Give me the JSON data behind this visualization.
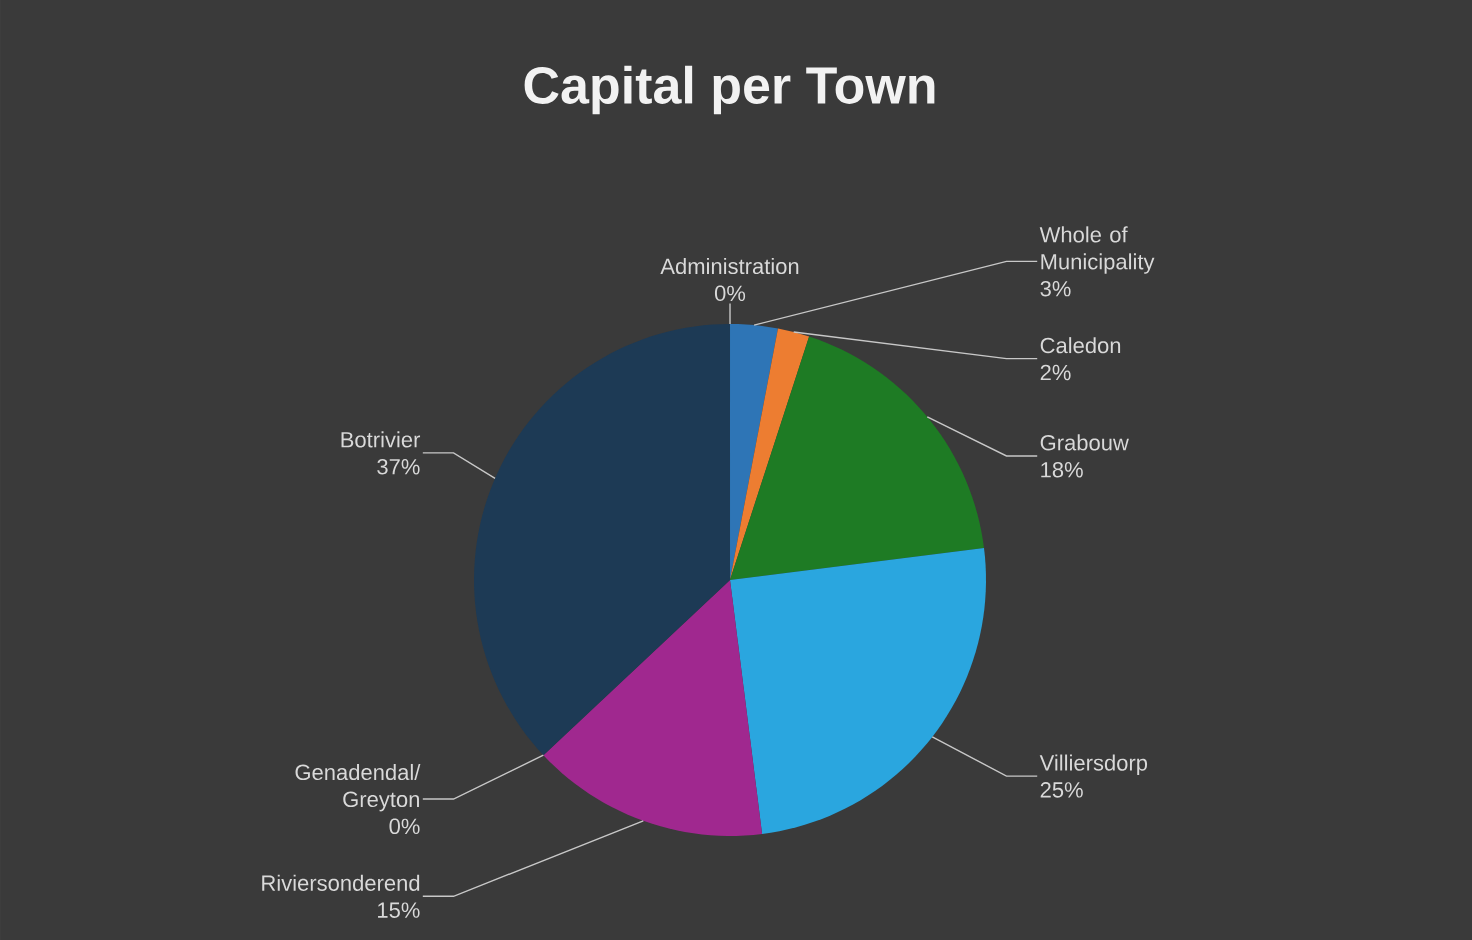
{
  "chart_data": {
    "type": "pie",
    "title": "Capital per Town",
    "categories": [
      "Administration",
      "Whole of Municipality",
      "Caledon",
      "Grabouw",
      "Villiersdorp",
      "Riviersonderend",
      "Genadendal/ Greyton",
      "Botrivier"
    ],
    "values": [
      0,
      3,
      2,
      18,
      25,
      15,
      0,
      37
    ],
    "value_labels": [
      "0%",
      "3%",
      "2%",
      "18%",
      "25%",
      "15%",
      "0%",
      "37%"
    ],
    "colors": [
      "#c55a11",
      "#2e75b6",
      "#ed7d31",
      "#1e7b24",
      "#2aa6df",
      "#a0288f",
      "#8c8c8c",
      "#1d3a55"
    ]
  }
}
